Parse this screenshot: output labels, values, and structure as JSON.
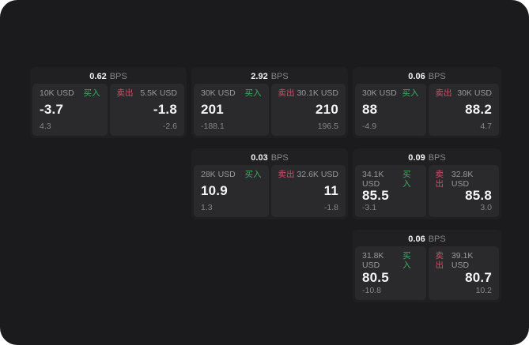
{
  "labels": {
    "bps_unit": "BPS",
    "buy": "买入",
    "sell": "卖出"
  },
  "colors": {
    "page_bg": "#1b1b1d",
    "card_bg": "#202023",
    "panel_bg": "#2a2a2d",
    "buy_green": "#3cab63",
    "sell_red": "#cf5068",
    "value_white": "#f4f4f5",
    "muted_gray": "#98989d"
  },
  "cards": [
    {
      "bps_value": "0.62",
      "buy_amount": "10K USD",
      "buy_value": "-3.7",
      "buy_sub": "4.3",
      "sell_amount": "5.5K USD",
      "sell_value": "-1.8",
      "sell_sub": "-2.6"
    },
    {
      "bps_value": "2.92",
      "buy_amount": "30K USD",
      "buy_value": "201",
      "buy_sub": "-188.1",
      "sell_amount": "30.1K USD",
      "sell_value": "210",
      "sell_sub": "196.5"
    },
    {
      "bps_value": "0.06",
      "buy_amount": "30K USD",
      "buy_value": "88",
      "buy_sub": "-4.9",
      "sell_amount": "30K USD",
      "sell_value": "88.2",
      "sell_sub": "4.7"
    },
    {
      "bps_value": "0.03",
      "buy_amount": "28K USD",
      "buy_value": "10.9",
      "buy_sub": "1.3",
      "sell_amount": "32.6K USD",
      "sell_value": "11",
      "sell_sub": "-1.8"
    },
    {
      "bps_value": "0.09",
      "buy_amount": "34.1K USD",
      "buy_value": "85.5",
      "buy_sub": "-3.1",
      "sell_amount": "32.8K USD",
      "sell_value": "85.8",
      "sell_sub": "3.0"
    },
    {
      "bps_value": "0.06",
      "buy_amount": "31.8K USD",
      "buy_value": "80.5",
      "buy_sub": "-10.8",
      "sell_amount": "39.1K USD",
      "sell_value": "80.7",
      "sell_sub": "10.2"
    }
  ]
}
